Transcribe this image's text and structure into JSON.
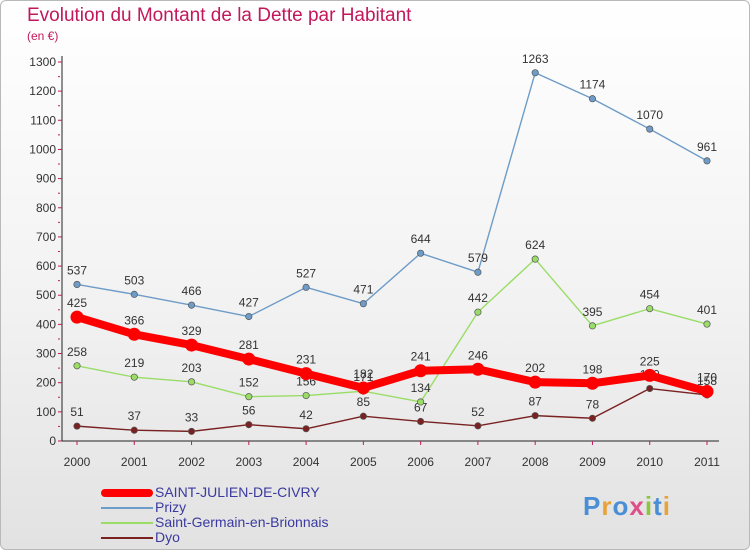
{
  "chart_data": {
    "type": "line",
    "title": "Evolution du Montant de la Dette par Habitant",
    "subtitle": "(en €)",
    "categories": [
      "2000",
      "2001",
      "2002",
      "2003",
      "2004",
      "2005",
      "2006",
      "2007",
      "2008",
      "2009",
      "2010",
      "2011"
    ],
    "y_ticks": [
      0,
      100,
      200,
      300,
      400,
      500,
      600,
      700,
      800,
      900,
      1000,
      1100,
      1200,
      1300
    ],
    "ylim": [
      0,
      1300
    ],
    "grid": false,
    "legend_position": "bottom-left",
    "series": [
      {
        "name": "SAINT-JULIEN-DE-CIVRY",
        "color": "#ff0000",
        "values": [
          425,
          366,
          329,
          281,
          231,
          182,
          241,
          246,
          202,
          198,
          225,
          170
        ]
      },
      {
        "name": "Prizy",
        "color": "#6e9cc8",
        "values": [
          537,
          503,
          466,
          427,
          527,
          471,
          644,
          579,
          1263,
          1174,
          1070,
          961
        ]
      },
      {
        "name": "Saint-Germain-en-Brionnais",
        "color": "#99dd66",
        "values": [
          258,
          219,
          203,
          152,
          156,
          171,
          134,
          442,
          624,
          395,
          454,
          401
        ]
      },
      {
        "name": "Dyo",
        "color": "#7a2222",
        "values": [
          51,
          37,
          33,
          56,
          42,
          85,
          67,
          52,
          87,
          78,
          180,
          158
        ]
      }
    ]
  },
  "brand": {
    "text": "Proxiti"
  }
}
